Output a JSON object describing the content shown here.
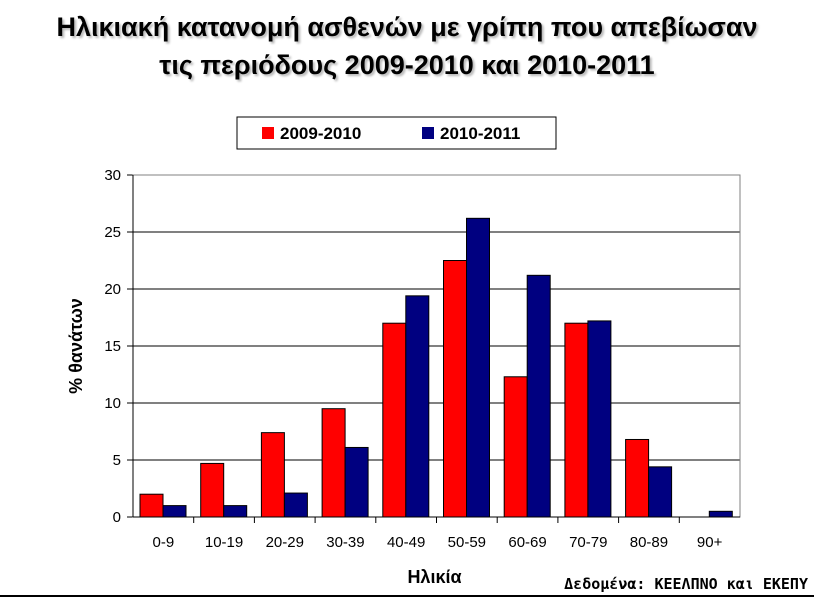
{
  "title_line1": "Ηλικιακή κατανομή ασθενών με γρίπη που απεβίωσαν",
  "title_line2": "τις περιόδους 2009-2010 και 2010-2011",
  "source": "Δεδομένα: ΚΕΕΛΠΝΟ και ΕΚΕΠΥ",
  "chart_data": {
    "type": "bar",
    "title": "Ηλικιακή κατανομή ασθενών με γρίπη που απεβίωσαν τις περιόδους 2009-2010 και 2010-2011",
    "xlabel": "Ηλικία",
    "ylabel": "% θανάτων",
    "ylim": [
      0,
      30
    ],
    "yticks": [
      0,
      5,
      10,
      15,
      20,
      25,
      30
    ],
    "grid": true,
    "legend_position": "top-center",
    "categories": [
      "0-9",
      "10-19",
      "20-29",
      "30-39",
      "40-49",
      "50-59",
      "60-69",
      "70-79",
      "80-89",
      "90+"
    ],
    "series": [
      {
        "name": "2009-2010",
        "color": "#ff0000",
        "values": [
          2.0,
          4.7,
          7.4,
          9.5,
          17.0,
          22.5,
          12.3,
          17.0,
          6.8,
          0
        ]
      },
      {
        "name": "2010-2011",
        "color": "#000080",
        "values": [
          1.0,
          1.0,
          2.1,
          6.1,
          19.4,
          26.2,
          21.2,
          17.2,
          4.4,
          0.5
        ]
      }
    ]
  }
}
